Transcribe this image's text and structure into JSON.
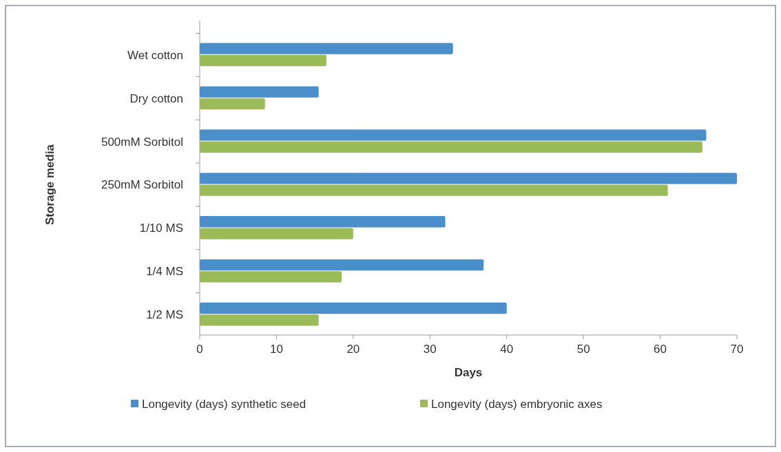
{
  "chart_data": {
    "type": "bar",
    "orientation": "horizontal",
    "xlabel": "Days",
    "ylabel": "Storage media",
    "categories": [
      "Wet cotton",
      "Dry cotton",
      "500mM Sorbitol",
      "250mM Sorbitol",
      "1/10 MS",
      "1/4 MS",
      "1/2 MS"
    ],
    "series": [
      {
        "name": "Longevity (days) synthetic seed",
        "color": "#4a8fc9",
        "values": [
          33,
          15.5,
          66,
          70,
          32,
          37,
          40
        ]
      },
      {
        "name": "Longevity (days) embryonic axes",
        "color": "#9bbb59",
        "values": [
          16.5,
          8.5,
          65.5,
          61,
          20,
          18.5,
          15.5
        ]
      }
    ],
    "xlim": [
      0,
      70
    ],
    "xticks": [
      0,
      10,
      20,
      30,
      40,
      50,
      60,
      70
    ],
    "grid": false,
    "legend": "bottom"
  }
}
